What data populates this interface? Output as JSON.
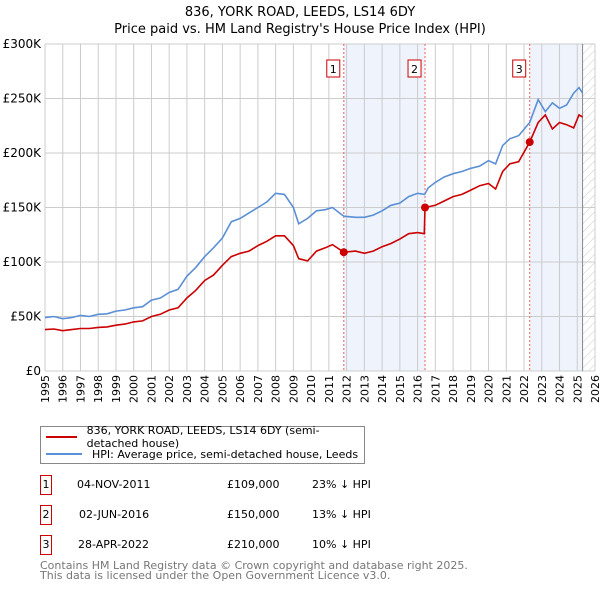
{
  "title": "836, YORK ROAD, LEEDS, LS14 6DY",
  "subtitle": "Price paid vs. HM Land Registry's House Price Index (HPI)",
  "chart_data": {
    "type": "line",
    "xlim": [
      1995,
      2026
    ],
    "ylim": [
      0,
      300000
    ],
    "yticks": [
      {
        "v": 0,
        "label": "£0"
      },
      {
        "v": 50000,
        "label": "£50K"
      },
      {
        "v": 100000,
        "label": "£100K"
      },
      {
        "v": 150000,
        "label": "£150K"
      },
      {
        "v": 200000,
        "label": "£200K"
      },
      {
        "v": 250000,
        "label": "£250K"
      },
      {
        "v": 300000,
        "label": "£300K"
      }
    ],
    "xticks": [
      "1995",
      "1996",
      "1997",
      "1998",
      "1999",
      "2000",
      "2001",
      "2002",
      "2003",
      "2004",
      "2005",
      "2006",
      "2007",
      "2008",
      "2009",
      "2010",
      "2011",
      "2012",
      "2013",
      "2014",
      "2015",
      "2016",
      "2017",
      "2018",
      "2019",
      "2020",
      "2021",
      "2022",
      "2023",
      "2024",
      "2025",
      "2026"
    ],
    "grid": true,
    "shaded_ranges": [
      [
        2011.84,
        2016.42
      ],
      [
        2022.32,
        2025.3
      ]
    ],
    "hatched_after": 2025.3,
    "series": [
      {
        "name": "836, YORK ROAD, LEEDS, LS14 6DY (semi-detached house)",
        "color": "#cc0000",
        "x": [
          1995,
          1995.5,
          1996,
          1996.5,
          1997,
          1997.5,
          1998,
          1998.5,
          1999,
          1999.5,
          2000,
          2000.5,
          2001,
          2001.5,
          2002,
          2002.5,
          2003,
          2003.5,
          2004,
          2004.5,
          2005,
          2005.5,
          2006,
          2006.5,
          2007,
          2007.5,
          2008,
          2008.5,
          2009,
          2009.3,
          2009.8,
          2010.3,
          2010.8,
          2011.2,
          2011.84,
          2012.5,
          2013,
          2013.5,
          2014,
          2014.5,
          2015,
          2015.5,
          2016,
          2016.38,
          2016.42,
          2017,
          2017.5,
          2018,
          2018.5,
          2019,
          2019.5,
          2020,
          2020.4,
          2020.8,
          2021.2,
          2021.7,
          2022.32,
          2022.8,
          2023.2,
          2023.6,
          2024,
          2024.4,
          2024.8,
          2025.1,
          2025.3
        ],
        "y": [
          38000,
          38500,
          37000,
          38000,
          39000,
          39000,
          40000,
          40500,
          42000,
          43000,
          45000,
          46000,
          50000,
          52000,
          56000,
          58000,
          67000,
          74000,
          83000,
          88000,
          97000,
          105000,
          108000,
          110000,
          115000,
          119000,
          124000,
          124000,
          115000,
          103000,
          101000,
          110000,
          113000,
          116000,
          109000,
          110000,
          108000,
          110000,
          114000,
          117000,
          121000,
          126000,
          127000,
          126000,
          150000,
          152000,
          156000,
          160000,
          162000,
          166000,
          170000,
          172000,
          167000,
          183000,
          190000,
          192000,
          210000,
          228000,
          235000,
          222000,
          228000,
          226000,
          223000,
          235000,
          233000
        ]
      },
      {
        "name": "HPI: Average price, semi-detached house, Leeds",
        "color": "#5b8fd6",
        "x": [
          1995,
          1995.5,
          1996,
          1996.5,
          1997,
          1997.5,
          1998,
          1998.5,
          1999,
          1999.5,
          2000,
          2000.5,
          2001,
          2001.5,
          2002,
          2002.5,
          2003,
          2003.5,
          2004,
          2004.5,
          2005,
          2005.5,
          2006,
          2006.5,
          2007,
          2007.5,
          2008,
          2008.5,
          2009,
          2009.3,
          2009.8,
          2010.3,
          2010.8,
          2011.2,
          2011.84,
          2012.5,
          2013,
          2013.5,
          2014,
          2014.5,
          2015,
          2015.5,
          2016,
          2016.4,
          2016.6,
          2017,
          2017.5,
          2018,
          2018.5,
          2019,
          2019.5,
          2020,
          2020.4,
          2020.8,
          2021.2,
          2021.7,
          2022.32,
          2022.8,
          2023.2,
          2023.6,
          2024,
          2024.4,
          2024.8,
          2025.1,
          2025.3
        ],
        "y": [
          49000,
          50000,
          48000,
          49000,
          51000,
          50000,
          52000,
          52500,
          55000,
          56000,
          58000,
          59000,
          65000,
          67000,
          72000,
          75000,
          87000,
          95000,
          105000,
          113000,
          122000,
          137000,
          140000,
          145000,
          150000,
          155000,
          163000,
          162000,
          150000,
          135000,
          140000,
          147000,
          148000,
          150000,
          142000,
          141000,
          141000,
          143000,
          147000,
          152000,
          154000,
          160000,
          163000,
          162000,
          168000,
          173000,
          178000,
          181000,
          183000,
          186000,
          188000,
          193000,
          190000,
          207000,
          213000,
          216000,
          228000,
          249000,
          238000,
          246000,
          241000,
          244000,
          255000,
          260000,
          255000
        ]
      }
    ],
    "markers": [
      {
        "label": "1",
        "x": 2011.84,
        "y": 109000
      },
      {
        "label": "2",
        "x": 2016.42,
        "y": 150000
      },
      {
        "label": "3",
        "x": 2022.32,
        "y": 210000
      }
    ]
  },
  "legend": {
    "red": "836, YORK ROAD, LEEDS, LS14 6DY (semi-detached house)",
    "blue": "HPI: Average price, semi-detached house, Leeds"
  },
  "sales": [
    {
      "num": "1",
      "date": "04-NOV-2011",
      "price": "£109,000",
      "hpi": "23% ↓ HPI"
    },
    {
      "num": "2",
      "date": "02-JUN-2016",
      "price": "£150,000",
      "hpi": "13% ↓ HPI"
    },
    {
      "num": "3",
      "date": "28-APR-2022",
      "price": "£210,000",
      "hpi": "10% ↓ HPI"
    }
  ],
  "footer": {
    "line1": "Contains HM Land Registry data © Crown copyright and database right 2025.",
    "line2": "This data is licensed under the Open Government Licence v3.0."
  }
}
